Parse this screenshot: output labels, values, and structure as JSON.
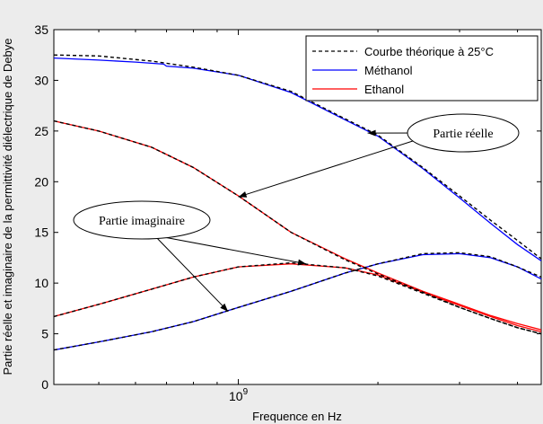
{
  "chart_data": {
    "type": "line",
    "xlabel": "Frequence en Hz",
    "ylabel": "Partie réelle et imaginaire de la permittivité diélectrique de Debye",
    "xscale": "log",
    "xlim": [
      400000000.0,
      4500000000.0
    ],
    "ylim": [
      0,
      35
    ],
    "x_tick_labels": [
      {
        "value": 1000000000.0,
        "base": "10",
        "exp": "9"
      }
    ],
    "y_ticks": [
      0,
      5,
      10,
      15,
      20,
      25,
      30,
      35
    ],
    "grid": false,
    "legend_position": "top-right",
    "legend": [
      {
        "label": "Courbe théorique à 25°C",
        "color": "#000000",
        "style": "dashed"
      },
      {
        "label": "Méthanol",
        "color": "#0000ff",
        "style": "solid"
      },
      {
        "label": "Ethanol",
        "color": "#ff0000",
        "style": "solid"
      }
    ],
    "series": [
      {
        "key": "theo_meth_real",
        "color": "#000000",
        "dash": true,
        "x": [
          400000000.0,
          500000000.0,
          650000000.0,
          800000000.0,
          1000000000.0,
          1300000000.0,
          1700000000.0,
          2000000000.0,
          2500000000.0,
          3000000000.0,
          3500000000.0,
          4000000000.0,
          4500000000.0
        ],
        "y": [
          32.5,
          32.4,
          31.9,
          31.3,
          30.5,
          28.9,
          26.2,
          24.6,
          21.4,
          18.6,
          16.2,
          14.2,
          12.4
        ]
      },
      {
        "key": "theo_meth_imag",
        "color": "#000000",
        "dash": true,
        "x": [
          400000000.0,
          500000000.0,
          650000000.0,
          800000000.0,
          1000000000.0,
          1300000000.0,
          1700000000.0,
          2000000000.0,
          2500000000.0,
          3000000000.0,
          3500000000.0,
          4000000000.0,
          4500000000.0
        ],
        "y": [
          3.4,
          4.2,
          5.2,
          6.2,
          7.6,
          9.2,
          11.0,
          11.9,
          12.9,
          13.0,
          12.6,
          11.6,
          10.6
        ]
      },
      {
        "key": "theo_eth_real",
        "color": "#000000",
        "dash": true,
        "x": [
          400000000.0,
          500000000.0,
          650000000.0,
          800000000.0,
          1000000000.0,
          1300000000.0,
          1700000000.0,
          2000000000.0,
          2500000000.0,
          3000000000.0,
          3500000000.0,
          4000000000.0,
          4500000000.0
        ],
        "y": [
          26.0,
          25.0,
          23.4,
          21.4,
          18.6,
          15.0,
          12.3,
          10.9,
          9.1,
          7.6,
          6.5,
          5.6,
          5.0
        ]
      },
      {
        "key": "theo_eth_imag",
        "color": "#000000",
        "dash": true,
        "x": [
          400000000.0,
          500000000.0,
          650000000.0,
          800000000.0,
          1000000000.0,
          1300000000.0,
          1700000000.0,
          2000000000.0,
          2500000000.0,
          3000000000.0,
          3500000000.0,
          4000000000.0,
          4500000000.0
        ],
        "y": [
          6.7,
          7.9,
          9.4,
          10.6,
          11.6,
          12.0,
          11.5,
          10.7,
          9.0,
          7.6,
          6.5,
          5.6,
          5.0
        ]
      },
      {
        "key": "meth_real",
        "name": "Méthanol",
        "color": "#0000ff",
        "x": [
          400000000.0,
          500000000.0,
          600000000.0,
          690000000.0,
          700000000.0,
          800000000.0,
          1000000000.0,
          1300000000.0,
          1700000000.0,
          2000000000.0,
          2500000000.0,
          3000000000.0,
          3500000000.0,
          4000000000.0,
          4500000000.0
        ],
        "y": [
          32.2,
          32.0,
          31.8,
          31.6,
          31.4,
          31.2,
          30.5,
          28.8,
          26.1,
          24.5,
          21.3,
          18.4,
          15.9,
          13.8,
          12.2
        ]
      },
      {
        "key": "meth_imag",
        "name": "Méthanol",
        "color": "#0000ff",
        "x": [
          400000000.0,
          500000000.0,
          650000000.0,
          800000000.0,
          1000000000.0,
          1300000000.0,
          1700000000.0,
          2000000000.0,
          2500000000.0,
          3000000000.0,
          3500000000.0,
          4000000000.0,
          4500000000.0
        ],
        "y": [
          3.4,
          4.2,
          5.2,
          6.2,
          7.6,
          9.2,
          11.0,
          11.9,
          12.8,
          12.9,
          12.5,
          11.6,
          10.4
        ]
      },
      {
        "key": "eth_real",
        "name": "Ethanol",
        "color": "#ff0000",
        "x": [
          400000000.0,
          500000000.0,
          650000000.0,
          800000000.0,
          1000000000.0,
          1300000000.0,
          1700000000.0,
          2000000000.0,
          2500000000.0,
          3000000000.0,
          3500000000.0,
          4000000000.0,
          4500000000.0
        ],
        "y": [
          26.0,
          25.0,
          23.4,
          21.4,
          18.6,
          15.0,
          12.4,
          11.0,
          9.2,
          7.9,
          6.8,
          6.0,
          5.4
        ]
      },
      {
        "key": "eth_imag",
        "name": "Ethanol",
        "color": "#ff0000",
        "x": [
          400000000.0,
          500000000.0,
          650000000.0,
          800000000.0,
          1000000000.0,
          1300000000.0,
          1700000000.0,
          2000000000.0,
          2500000000.0,
          3000000000.0,
          3500000000.0,
          4000000000.0,
          4500000000.0
        ],
        "y": [
          6.7,
          7.9,
          9.4,
          10.6,
          11.6,
          11.9,
          11.5,
          10.8,
          9.1,
          7.8,
          6.7,
          5.8,
          5.2
        ]
      }
    ],
    "annotations": [
      {
        "text": "Partie réelle",
        "arrows_to": [
          [
            1900000000.0,
            24.8
          ],
          [
            1000000000.0,
            18.5
          ]
        ]
      },
      {
        "text": "Partie imaginaire",
        "arrows_to": [
          [
            1400000000.0,
            11.9
          ],
          [
            950000000.0,
            7.2
          ]
        ]
      }
    ]
  }
}
